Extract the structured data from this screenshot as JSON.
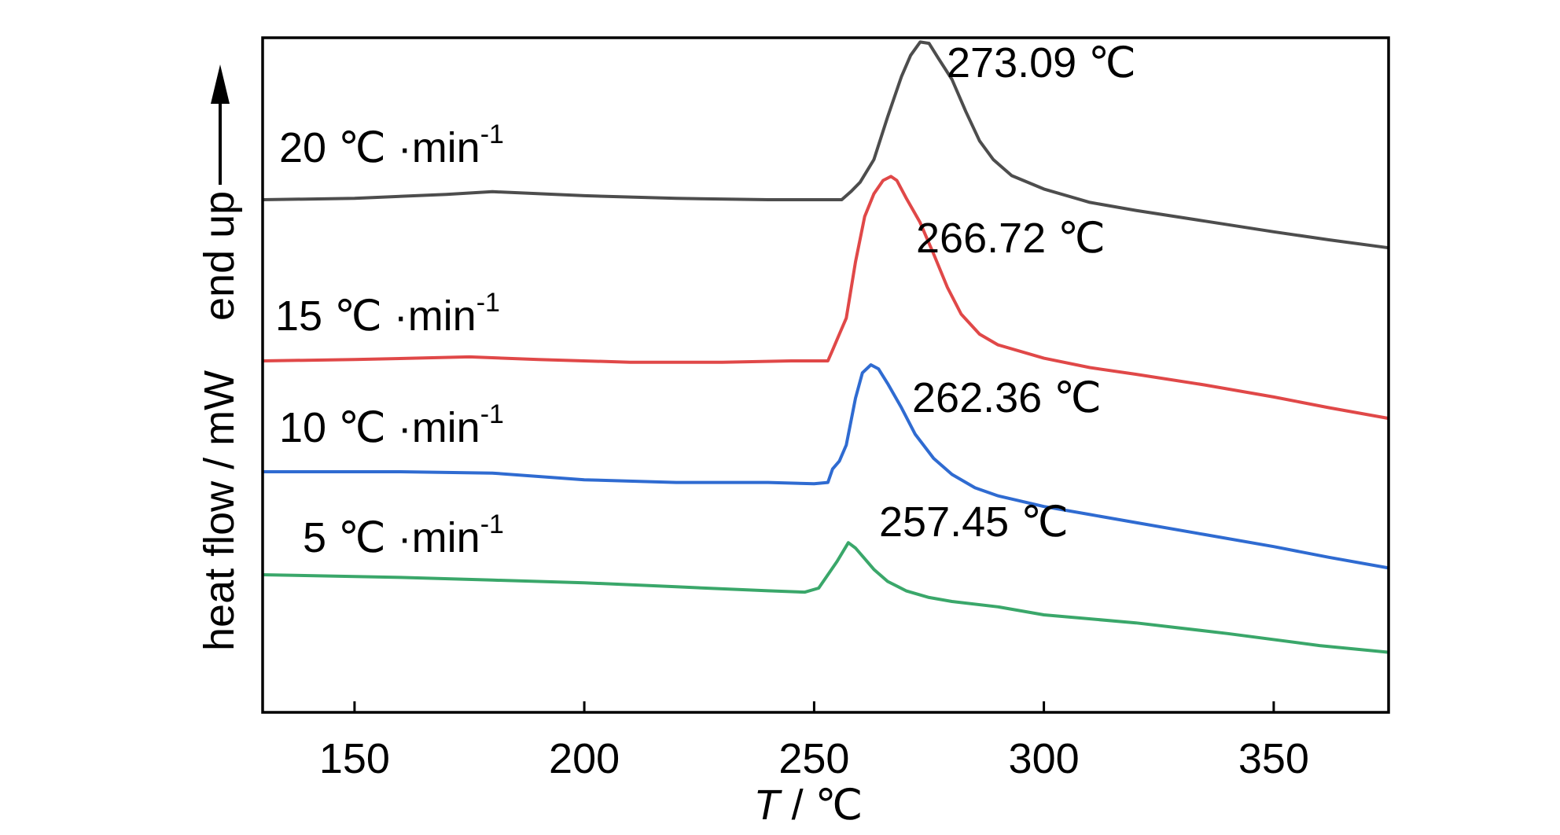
{
  "chart_data": {
    "type": "line",
    "xlabel_italic": "T",
    "xlabel_rest": " / ℃",
    "ylabel": "heat flow / mW",
    "direction_label": "end up",
    "xlim": [
      130,
      375
    ],
    "x_ticks": [
      150,
      200,
      250,
      300,
      350
    ],
    "y_ticks_shown": false,
    "grid": false,
    "colors": {
      "axis": "#000000",
      "s20": "#4d4d4d",
      "s15": "#e04848",
      "s10": "#2f6bd1",
      "s5": "#3aa76a"
    },
    "series": [
      {
        "id": "s20",
        "name_prefix": "20 ℃ ·min",
        "name_sup": "-1",
        "peak_label": "273.09  ℃",
        "peak_x": 273.09,
        "points": [
          [
            130,
            0.0
          ],
          [
            150,
            0.01
          ],
          [
            170,
            0.04
          ],
          [
            180,
            0.06
          ],
          [
            200,
            0.03
          ],
          [
            220,
            0.01
          ],
          [
            240,
            0.0
          ],
          [
            250,
            0.0
          ],
          [
            256,
            0.0
          ],
          [
            258,
            0.06
          ],
          [
            260,
            0.13
          ],
          [
            263,
            0.3
          ],
          [
            266,
            0.62
          ],
          [
            269,
            0.92
          ],
          [
            271,
            1.08
          ],
          [
            273.09,
            1.18
          ],
          [
            275,
            1.17
          ],
          [
            277,
            1.06
          ],
          [
            280,
            0.9
          ],
          [
            283,
            0.66
          ],
          [
            286,
            0.44
          ],
          [
            289,
            0.3
          ],
          [
            293,
            0.18
          ],
          [
            300,
            0.08
          ],
          [
            310,
            -0.02
          ],
          [
            320,
            -0.08
          ],
          [
            335,
            -0.16
          ],
          [
            350,
            -0.24
          ],
          [
            362,
            -0.3
          ],
          [
            375,
            -0.36
          ]
        ]
      },
      {
        "id": "s15",
        "name_prefix": "15 ℃ ·min",
        "name_sup": "-1",
        "peak_label": "266.72 ℃",
        "peak_x": 266.72,
        "points": [
          [
            130,
            0.0
          ],
          [
            150,
            0.01
          ],
          [
            175,
            0.03
          ],
          [
            190,
            0.01
          ],
          [
            210,
            -0.01
          ],
          [
            230,
            -0.01
          ],
          [
            245,
            0.0
          ],
          [
            253,
            0.0
          ],
          [
            254,
            0.08
          ],
          [
            255.5,
            0.2
          ],
          [
            257,
            0.32
          ],
          [
            259,
            0.74
          ],
          [
            261,
            1.08
          ],
          [
            263,
            1.25
          ],
          [
            265,
            1.35
          ],
          [
            266.72,
            1.38
          ],
          [
            268,
            1.35
          ],
          [
            270,
            1.22
          ],
          [
            273,
            1.04
          ],
          [
            276,
            0.8
          ],
          [
            279,
            0.55
          ],
          [
            282,
            0.35
          ],
          [
            286,
            0.2
          ],
          [
            290,
            0.12
          ],
          [
            300,
            0.02
          ],
          [
            310,
            -0.05
          ],
          [
            320,
            -0.1
          ],
          [
            335,
            -0.18
          ],
          [
            350,
            -0.27
          ],
          [
            362,
            -0.35
          ],
          [
            375,
            -0.43
          ]
        ]
      },
      {
        "id": "s10",
        "name_prefix": "10 ℃ ·min",
        "name_sup": "-1",
        "peak_label": "262.36  ℃",
        "peak_x": 262.36,
        "points": [
          [
            130,
            0.0
          ],
          [
            160,
            0.0
          ],
          [
            180,
            -0.01
          ],
          [
            200,
            -0.06
          ],
          [
            220,
            -0.08
          ],
          [
            240,
            -0.08
          ],
          [
            250,
            -0.09
          ],
          [
            253,
            -0.08
          ],
          [
            254,
            0.02
          ],
          [
            255.5,
            0.08
          ],
          [
            257,
            0.2
          ],
          [
            259,
            0.55
          ],
          [
            260.5,
            0.74
          ],
          [
            262.36,
            0.8
          ],
          [
            264,
            0.77
          ],
          [
            266,
            0.66
          ],
          [
            269,
            0.48
          ],
          [
            272,
            0.28
          ],
          [
            276,
            0.1
          ],
          [
            280,
            -0.02
          ],
          [
            285,
            -0.12
          ],
          [
            290,
            -0.18
          ],
          [
            300,
            -0.26
          ],
          [
            310,
            -0.32
          ],
          [
            320,
            -0.38
          ],
          [
            335,
            -0.47
          ],
          [
            350,
            -0.56
          ],
          [
            362,
            -0.64
          ],
          [
            375,
            -0.72
          ]
        ]
      },
      {
        "id": "s5",
        "name_prefix": "5 ℃ ·min",
        "name_sup": "-1",
        "peak_label": "257.45 ℃",
        "peak_x": 257.45,
        "points": [
          [
            130,
            0.0
          ],
          [
            160,
            -0.02
          ],
          [
            180,
            -0.04
          ],
          [
            200,
            -0.06
          ],
          [
            220,
            -0.09
          ],
          [
            240,
            -0.12
          ],
          [
            248,
            -0.13
          ],
          [
            251,
            -0.1
          ],
          [
            253,
            0.0
          ],
          [
            255,
            0.1
          ],
          [
            257.45,
            0.24
          ],
          [
            259,
            0.2
          ],
          [
            261,
            0.12
          ],
          [
            263,
            0.04
          ],
          [
            266,
            -0.05
          ],
          [
            270,
            -0.12
          ],
          [
            275,
            -0.17
          ],
          [
            280,
            -0.2
          ],
          [
            290,
            -0.24
          ],
          [
            300,
            -0.3
          ],
          [
            320,
            -0.36
          ],
          [
            340,
            -0.44
          ],
          [
            360,
            -0.53
          ],
          [
            375,
            -0.58
          ]
        ]
      }
    ]
  }
}
